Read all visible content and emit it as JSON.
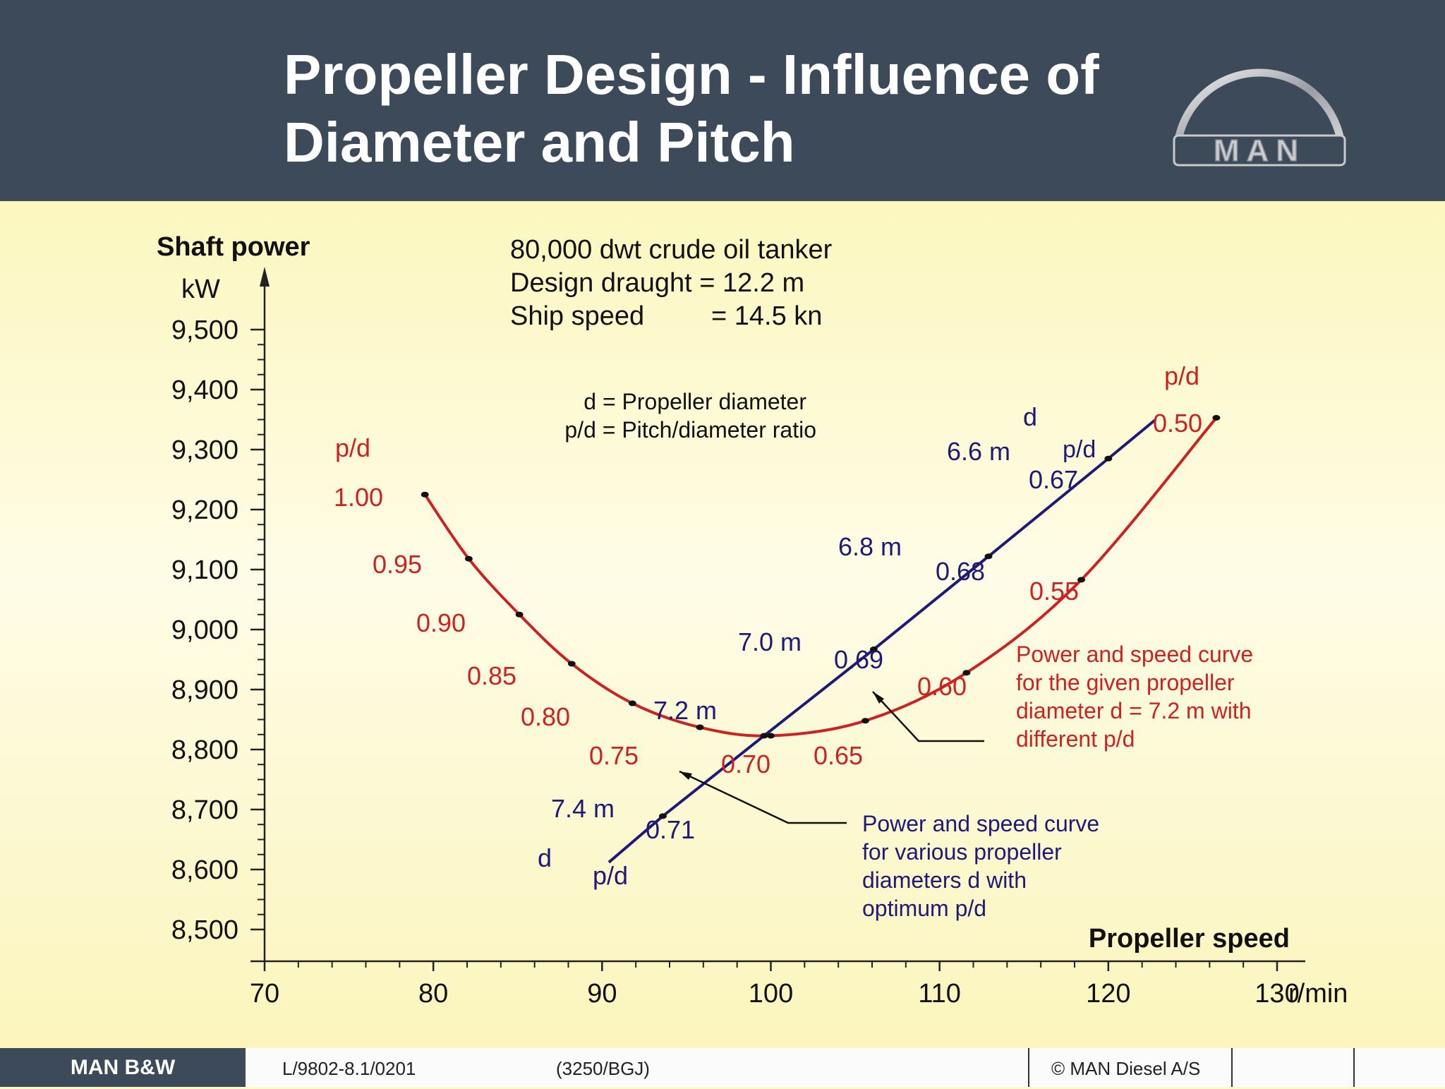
{
  "slide": {
    "title_line1": "Propeller Design - Influence of",
    "title_line2": "Diameter and Pitch",
    "logo_text": "MAN",
    "footer": {
      "brand": "MAN B&W",
      "doc_ref": "L/9802-8.1/0201",
      "code": "(3250/BGJ)",
      "copyright": "© MAN Diesel A/S"
    },
    "colors": {
      "header": "#3d4a5a",
      "background": "#fdf8c4",
      "red_curve": "#cc2222",
      "blue_curve": "#1f1a78"
    }
  },
  "chart_data": {
    "type": "line",
    "ylabel": "Shaft power",
    "yunit": "kW",
    "xlabel": "Propeller speed",
    "xunit": "r/min",
    "xlim": [
      70,
      130
    ],
    "ylim": [
      8500,
      9500
    ],
    "x_ticks": [
      "70",
      "80",
      "90",
      "100",
      "110",
      "120",
      "130"
    ],
    "y_ticks": [
      "9,500",
      "9,400",
      "9,300",
      "9,200",
      "9,100",
      "9,000",
      "8,900",
      "8,800",
      "8,700",
      "8,600",
      "8,500"
    ],
    "info": [
      "80,000 dwt crude oil tanker",
      "Design draught = 12.2 m",
      "Ship speed",
      "= 14.5 kn"
    ],
    "legend_defs": [
      "d = Propeller diameter",
      "p/d = Pitch/diameter ratio"
    ],
    "series": [
      {
        "name": "Power and speed curve for the given propeller diameter d = 7.2 m with different p/d",
        "color": "#cc2222",
        "points": [
          {
            "x": 79.5,
            "y": 9225,
            "label": "1.00"
          },
          {
            "x": 82.1,
            "y": 9118,
            "label": "0.95"
          },
          {
            "x": 85.1,
            "y": 9025,
            "label": "0.90"
          },
          {
            "x": 88.2,
            "y": 8943,
            "label": "0.85"
          },
          {
            "x": 91.8,
            "y": 8877,
            "label": "0.80"
          },
          {
            "x": 95.8,
            "y": 8837,
            "label": "0.75"
          },
          {
            "x": 100.0,
            "y": 8823,
            "label": "0.70"
          },
          {
            "x": 105.6,
            "y": 8848,
            "label": "0.65"
          },
          {
            "x": 111.6,
            "y": 8928,
            "label": "0.60"
          },
          {
            "x": 118.4,
            "y": 9083,
            "label": "0.55"
          },
          {
            "x": 126.4,
            "y": 9353,
            "label": "0.50"
          }
        ]
      },
      {
        "name": "Power and speed curve for various propeller diameters d with optimum p/d",
        "color": "#1f1a78",
        "points": [
          {
            "x": 90.4,
            "y": 8612
          },
          {
            "x": 93.6,
            "y": 8689,
            "d": "7.4 m",
            "label": "0.71"
          },
          {
            "x": 99.6,
            "y": 8823,
            "d": "7.2 m",
            "label": "0.70"
          },
          {
            "x": 106.1,
            "y": 8967,
            "d": "7.0 m",
            "label": "0.69"
          },
          {
            "x": 112.9,
            "y": 9122,
            "d": "6.8 m",
            "label": "0.68"
          },
          {
            "x": 120.0,
            "y": 9285,
            "d": "6.6 m",
            "label": "0.67"
          },
          {
            "x": 122.8,
            "y": 9350
          }
        ]
      }
    ],
    "annotations": {
      "red_pd_left": "p/d",
      "red_pd_right": "p/d",
      "blue_d_top": "d",
      "blue_pd_top": "p/d",
      "blue_d_bottom": "d",
      "blue_pd_bottom": "p/d",
      "red_callout": [
        "Power and speed curve",
        "for the given propeller",
        "diameter d = 7.2 m with",
        "different p/d"
      ],
      "blue_callout": [
        "Power and speed curve",
        "for various propeller",
        "diameters d with",
        "optimum p/d"
      ]
    }
  }
}
